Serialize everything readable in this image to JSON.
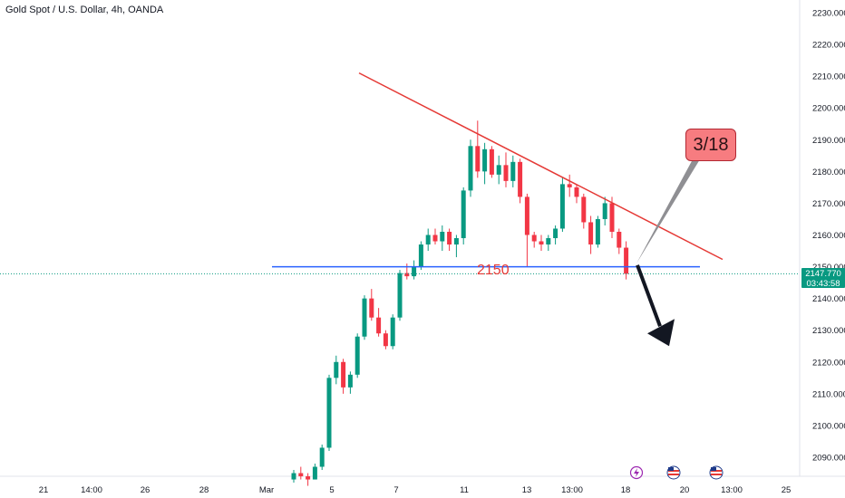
{
  "header": {
    "title": "Gold Spot / U.S. Dollar, 4h, OANDA"
  },
  "badge": {
    "price": "2147.770",
    "countdown": "03:43:58",
    "color": "#089981"
  },
  "annotations": {
    "callout": "3/18",
    "level": "2150"
  },
  "chart_data": {
    "type": "candlestick",
    "title": "Gold Spot / U.S. Dollar, 4h, OANDA",
    "y_ticks": [
      "2230.000",
      "2220.000",
      "2210.000",
      "2200.000",
      "2190.000",
      "2180.000",
      "2170.000",
      "2160.000",
      "2150.000",
      "2140.000",
      "2130.000",
      "2120.000",
      "2110.000",
      "2100.000",
      "2090.000"
    ],
    "y_tick_values": [
      2230,
      2220,
      2210,
      2200,
      2190,
      2180,
      2170,
      2160,
      2150,
      2140,
      2130,
      2120,
      2110,
      2100,
      2090
    ],
    "ylim": [
      2083.5,
      2234
    ],
    "x_ticks": [
      "21",
      "14:00",
      "26",
      "28",
      "Mar",
      "5",
      "7",
      "11",
      "13",
      "13:00",
      "18",
      "20",
      "13:00",
      "25"
    ],
    "up_color": "#089981",
    "down_color": "#f23645",
    "candles": [
      [
        2083,
        2086,
        2082,
        2085
      ],
      [
        2085,
        2087,
        2083,
        2084
      ],
      [
        2084,
        2085,
        2081,
        2083
      ],
      [
        2083,
        2088,
        2083,
        2087
      ],
      [
        2087,
        2094,
        2086,
        2093
      ],
      [
        2093,
        2116,
        2092,
        2115
      ],
      [
        2115,
        2122,
        2113,
        2120
      ],
      [
        2120,
        2121,
        2110,
        2112
      ],
      [
        2112,
        2117,
        2110,
        2116
      ],
      [
        2116,
        2129,
        2115,
        2128
      ],
      [
        2128,
        2141,
        2127,
        2140
      ],
      [
        2140,
        2143,
        2133,
        2134
      ],
      [
        2134,
        2137,
        2128,
        2129
      ],
      [
        2129,
        2130,
        2124,
        2125
      ],
      [
        2125,
        2135,
        2124,
        2134
      ],
      [
        2134,
        2149,
        2133,
        2148
      ],
      [
        2148,
        2151,
        2146,
        2147
      ],
      [
        2147,
        2152,
        2146,
        2150
      ],
      [
        2150,
        2158,
        2149,
        2157
      ],
      [
        2157,
        2162,
        2155,
        2160
      ],
      [
        2160,
        2162,
        2157,
        2158
      ],
      [
        2158,
        2163,
        2155,
        2161
      ],
      [
        2161,
        2162,
        2155,
        2157
      ],
      [
        2157,
        2160,
        2153,
        2159
      ],
      [
        2159,
        2175,
        2157,
        2174
      ],
      [
        2174,
        2190,
        2172,
        2188
      ],
      [
        2188,
        2196,
        2178,
        2180
      ],
      [
        2180,
        2189,
        2176,
        2187
      ],
      [
        2187,
        2188,
        2178,
        2179
      ],
      [
        2179,
        2185,
        2176,
        2182
      ],
      [
        2182,
        2186,
        2175,
        2177
      ],
      [
        2177,
        2185,
        2175,
        2183
      ],
      [
        2183,
        2184,
        2170,
        2172
      ],
      [
        2172,
        2173,
        2150,
        2160
      ],
      [
        2160,
        2161,
        2156,
        2158
      ],
      [
        2158,
        2160,
        2155,
        2157
      ],
      [
        2157,
        2160,
        2155,
        2159
      ],
      [
        2159,
        2163,
        2157,
        2162
      ],
      [
        2162,
        2178,
        2161,
        2176
      ],
      [
        2176,
        2179,
        2172,
        2175
      ],
      [
        2175,
        2176,
        2170,
        2172
      ],
      [
        2172,
        2173,
        2162,
        2164
      ],
      [
        2164,
        2166,
        2154,
        2157
      ],
      [
        2157,
        2166,
        2156,
        2165
      ],
      [
        2165,
        2172,
        2163,
        2170
      ],
      [
        2170,
        2172,
        2159,
        2161
      ],
      [
        2161,
        2162,
        2154,
        2156
      ],
      [
        2156,
        2158,
        2146,
        2147.77
      ]
    ],
    "current_price": 2147.77,
    "support": {
      "value": 2150,
      "label": "2150",
      "color": "#2962ff"
    },
    "trendline": {
      "color": "#e53935",
      "from": [
        396,
        2211
      ],
      "to": [
        797,
        2152.3
      ]
    },
    "forecast_arrow": {
      "color": "#131722",
      "from": [
        703,
        2150.5
      ],
      "to": [
        738,
        2125
      ]
    }
  }
}
